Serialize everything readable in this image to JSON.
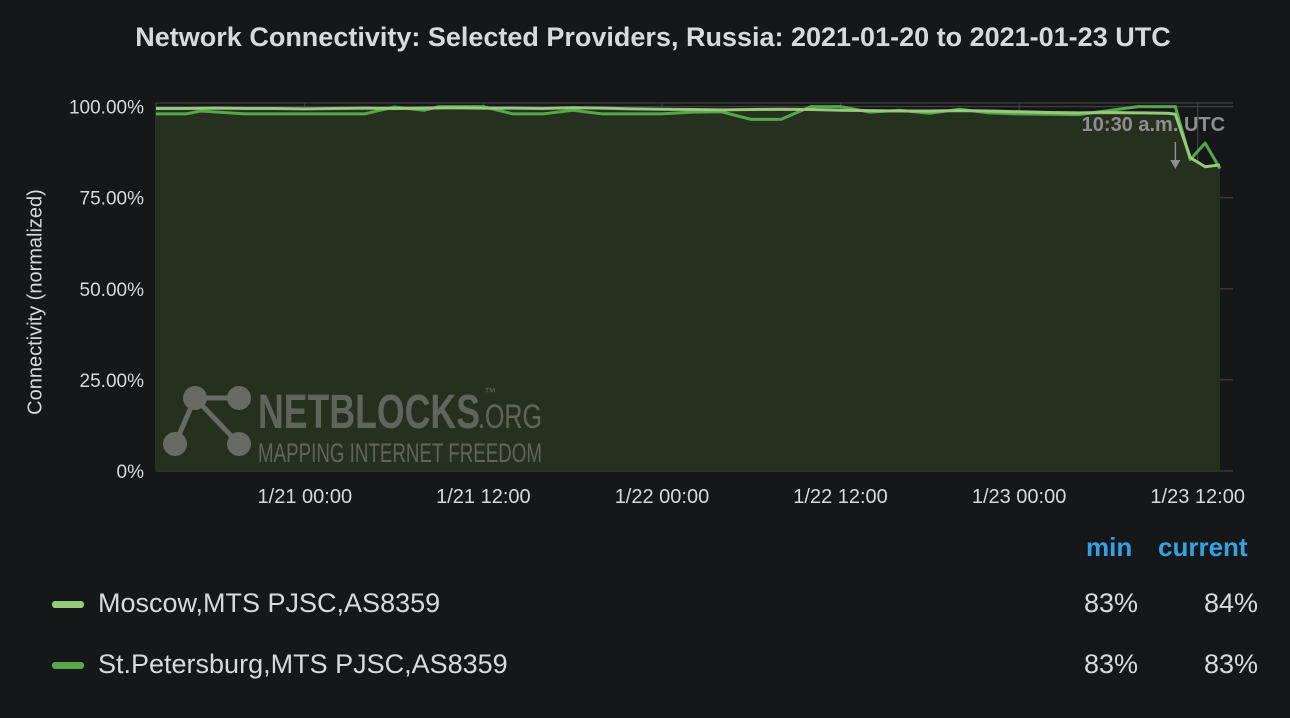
{
  "chart_data": {
    "type": "area",
    "title": "Network Connectivity: Selected Providers, Russia: 2021-01-20 to 2021-01-23 UTC",
    "ylabel": "Connectivity (normalized)",
    "xlabel": "",
    "ylim": [
      0,
      101
    ],
    "y_ticks": [
      "0%",
      "25.00%",
      "50.00%",
      "75.00%",
      "100.00%"
    ],
    "y_tick_values": [
      0,
      25,
      50,
      75,
      100
    ],
    "x_range": [
      "2021-01-20 14:00",
      "2021-01-23 13:30"
    ],
    "x_ticks": [
      {
        "label": "1/21 00:00",
        "time": "2021-01-21 00:00"
      },
      {
        "label": "1/21 12:00",
        "time": "2021-01-21 12:00"
      },
      {
        "label": "1/22 00:00",
        "time": "2021-01-22 00:00"
      },
      {
        "label": "1/22 12:00",
        "time": "2021-01-22 12:00"
      },
      {
        "label": "1/23 00:00",
        "time": "2021-01-23 00:00"
      },
      {
        "label": "1/23 12:00",
        "time": "2021-01-23 12:00"
      }
    ],
    "grid": true,
    "annotation": {
      "label": "10:30 a.m. UTC",
      "time": "2021-01-23 10:30"
    },
    "series": [
      {
        "name": "Moscow,MTS PJSC,AS8359",
        "color": "#96c97a",
        "x": [
          "2021-01-20 14:00",
          "2021-01-20 16:00",
          "2021-01-20 18:00",
          "2021-01-20 20:00",
          "2021-01-20 22:00",
          "2021-01-21 00:00",
          "2021-01-21 02:00",
          "2021-01-21 04:00",
          "2021-01-21 06:00",
          "2021-01-21 08:00",
          "2021-01-21 10:00",
          "2021-01-21 12:00",
          "2021-01-21 14:00",
          "2021-01-21 16:00",
          "2021-01-21 18:00",
          "2021-01-21 20:00",
          "2021-01-21 22:00",
          "2021-01-22 00:00",
          "2021-01-22 02:00",
          "2021-01-22 04:00",
          "2021-01-22 06:00",
          "2021-01-22 08:00",
          "2021-01-22 10:00",
          "2021-01-22 12:00",
          "2021-01-22 14:00",
          "2021-01-22 16:00",
          "2021-01-22 18:00",
          "2021-01-22 20:00",
          "2021-01-22 22:00",
          "2021-01-23 00:00",
          "2021-01-23 02:00",
          "2021-01-23 04:00",
          "2021-01-23 06:00",
          "2021-01-23 08:00",
          "2021-01-23 10:00",
          "2021-01-23 10:30",
          "2021-01-23 11:30",
          "2021-01-23 12:30",
          "2021-01-23 13:30"
        ],
        "values": [
          99.5,
          99.5,
          99.6,
          99.5,
          99.5,
          99.4,
          99.5,
          99.6,
          99.5,
          99.6,
          99.7,
          99.6,
          99.6,
          99.5,
          99.7,
          99.6,
          99.4,
          99.3,
          99.2,
          99.1,
          99.2,
          99.3,
          99.2,
          99.0,
          98.9,
          98.8,
          98.8,
          98.9,
          98.8,
          98.6,
          98.4,
          98.3,
          98.4,
          98.3,
          98.2,
          97.9,
          86.0,
          83.5,
          84.0
        ],
        "min": "83%",
        "current": "84%"
      },
      {
        "name": "St.Petersburg,MTS PJSC,AS8359",
        "color": "#56a64b",
        "x": [
          "2021-01-20 14:00",
          "2021-01-20 15:00",
          "2021-01-20 16:00",
          "2021-01-20 17:00",
          "2021-01-20 20:00",
          "2021-01-21 00:00",
          "2021-01-21 04:00",
          "2021-01-21 06:00",
          "2021-01-21 08:00",
          "2021-01-21 09:00",
          "2021-01-21 10:00",
          "2021-01-21 12:00",
          "2021-01-21 14:00",
          "2021-01-21 16:00",
          "2021-01-21 18:00",
          "2021-01-21 20:00",
          "2021-01-21 22:00",
          "2021-01-22 00:00",
          "2021-01-22 02:00",
          "2021-01-22 04:00",
          "2021-01-22 06:00",
          "2021-01-22 08:00",
          "2021-01-22 10:00",
          "2021-01-22 12:00",
          "2021-01-22 14:00",
          "2021-01-22 16:00",
          "2021-01-22 18:00",
          "2021-01-22 20:00",
          "2021-01-22 22:00",
          "2021-01-23 00:00",
          "2021-01-23 04:00",
          "2021-01-23 08:00",
          "2021-01-23 10:30",
          "2021-01-23 11:30",
          "2021-01-23 12:30",
          "2021-01-23 13:00",
          "2021-01-23 13:30"
        ],
        "values": [
          98.0,
          98.0,
          98.0,
          98.8,
          98.0,
          98.0,
          98.0,
          99.9,
          99.0,
          100.0,
          100.0,
          100.0,
          98.0,
          98.0,
          99.0,
          98.0,
          98.0,
          98.0,
          98.5,
          98.6,
          96.5,
          96.5,
          100.0,
          100.0,
          98.5,
          99.0,
          98.2,
          99.3,
          98.3,
          98.0,
          97.8,
          100.0,
          100.0,
          85.5,
          90.0,
          86.5,
          83.0
        ],
        "min": "83%",
        "current": "83%"
      }
    ],
    "legend": {
      "placement": "bottom",
      "columns": [
        "min",
        "current"
      ]
    }
  },
  "watermark": {
    "brand": "NETBLOCKS",
    "tm": "™",
    "suffix": ".ORG",
    "tagline": "MAPPING INTERNET FREEDOM"
  },
  "colors": {
    "background": "#161719",
    "grid": "#464646",
    "text": "#d8d9da",
    "legend_header": "#33a2e5",
    "fill": "#26301f"
  }
}
